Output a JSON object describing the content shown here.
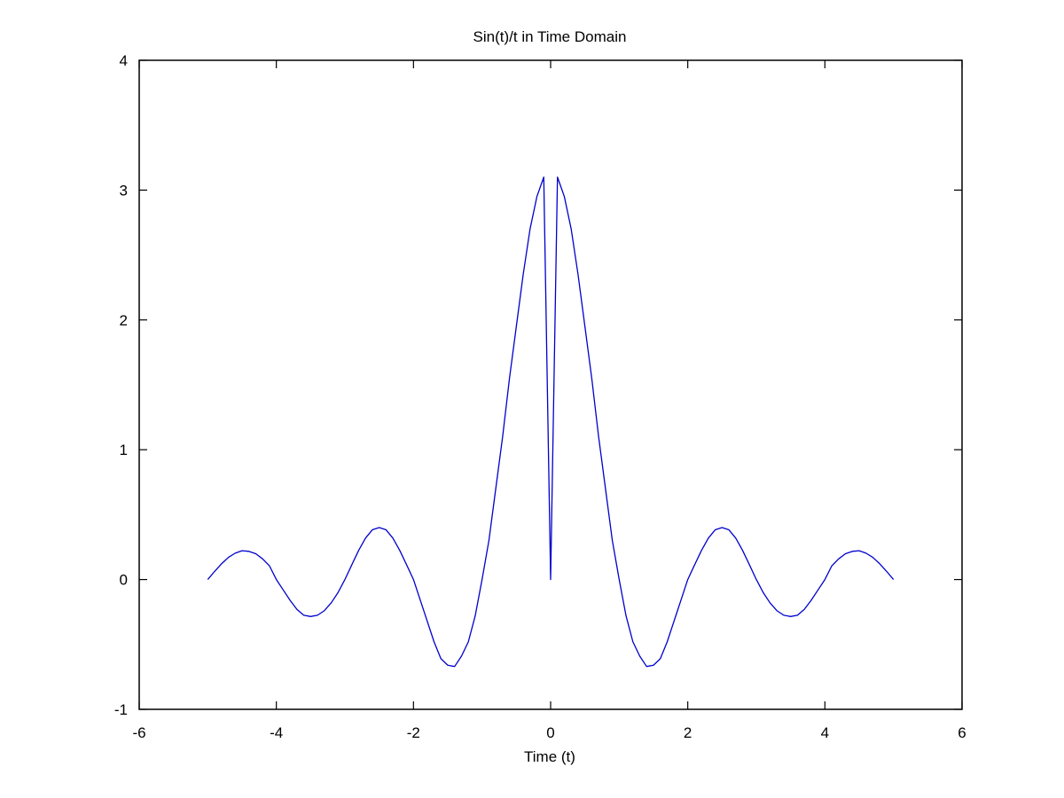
{
  "chart_data": {
    "type": "line",
    "title": "Sin(t)/t in Time Domain",
    "xlabel": "Time (t)",
    "ylabel": "",
    "xlim": [
      -6,
      6
    ],
    "ylim": [
      -1,
      4
    ],
    "xticks": [
      -6,
      -4,
      -2,
      0,
      2,
      4,
      6
    ],
    "yticks": [
      -1,
      0,
      1,
      2,
      3,
      4
    ],
    "xtick_labels": [
      "-6",
      "-4",
      "-2",
      "0",
      "2",
      "4",
      "6"
    ],
    "ytick_labels": [
      "-1",
      "0",
      "1",
      "2",
      "3",
      "4"
    ],
    "grid": false,
    "legend": "none",
    "line_color": "#0000cc",
    "series": [
      {
        "x": [
          -5.0,
          -4.9,
          -4.8,
          -4.7,
          -4.6,
          -4.5,
          -4.4,
          -4.3,
          -4.2,
          -4.1,
          -4.0,
          -3.9,
          -3.8,
          -3.7,
          -3.6,
          -3.5,
          -3.4,
          -3.3,
          -3.2,
          -3.1,
          -3.0,
          -2.9,
          -2.8,
          -2.7,
          -2.6,
          -2.5,
          -2.4,
          -2.3,
          -2.2,
          -2.1,
          -2.0,
          -1.9,
          -1.8,
          -1.7,
          -1.6,
          -1.5,
          -1.4,
          -1.3,
          -1.2,
          -1.1,
          -1.0,
          -0.9,
          -0.8,
          -0.7,
          -0.6,
          -0.5,
          -0.4,
          -0.3,
          -0.2,
          -0.1,
          0.0,
          0.1,
          0.2,
          0.3,
          0.4,
          0.5,
          0.6,
          0.7,
          0.8,
          0.9,
          1.0,
          1.1,
          1.2,
          1.3,
          1.4,
          1.5,
          1.6,
          1.7,
          1.8,
          1.9,
          2.0,
          2.1,
          2.2,
          2.3,
          2.4,
          2.5,
          2.6,
          2.7,
          2.8,
          2.9,
          3.0,
          3.1,
          3.2,
          3.3,
          3.4,
          3.5,
          3.6,
          3.7,
          3.8,
          3.9,
          4.0,
          4.1,
          4.2,
          4.3,
          4.4,
          4.5,
          4.6,
          4.7,
          4.8,
          4.9,
          5.0
        ],
        "y": [
          0.0,
          0.063,
          0.121,
          0.17,
          0.203,
          0.222,
          0.217,
          0.199,
          0.159,
          0.105,
          0.0,
          -0.08,
          -0.16,
          -0.23,
          -0.275,
          -0.285,
          -0.275,
          -0.24,
          -0.18,
          -0.1,
          0.0,
          0.113,
          0.224,
          0.319,
          0.383,
          0.4,
          0.383,
          0.319,
          0.224,
          0.113,
          0.0,
          -0.16,
          -0.32,
          -0.48,
          -0.61,
          -0.66,
          -0.67,
          -0.59,
          -0.48,
          -0.28,
          0.0,
          0.3,
          0.7,
          1.1,
          1.55,
          1.95,
          2.35,
          2.7,
          2.95,
          3.1,
          0.0,
          3.1,
          2.95,
          2.7,
          2.35,
          1.95,
          1.55,
          1.1,
          0.7,
          0.3,
          0.0,
          -0.28,
          -0.48,
          -0.59,
          -0.67,
          -0.66,
          -0.61,
          -0.48,
          -0.32,
          -0.16,
          0.0,
          0.113,
          0.224,
          0.319,
          0.383,
          0.4,
          0.383,
          0.319,
          0.224,
          0.113,
          0.0,
          -0.1,
          -0.18,
          -0.24,
          -0.275,
          -0.285,
          -0.275,
          -0.23,
          -0.16,
          -0.08,
          0.0,
          0.105,
          0.159,
          0.199,
          0.217,
          0.222,
          0.203,
          0.17,
          0.121,
          0.063,
          0.0
        ]
      }
    ]
  }
}
